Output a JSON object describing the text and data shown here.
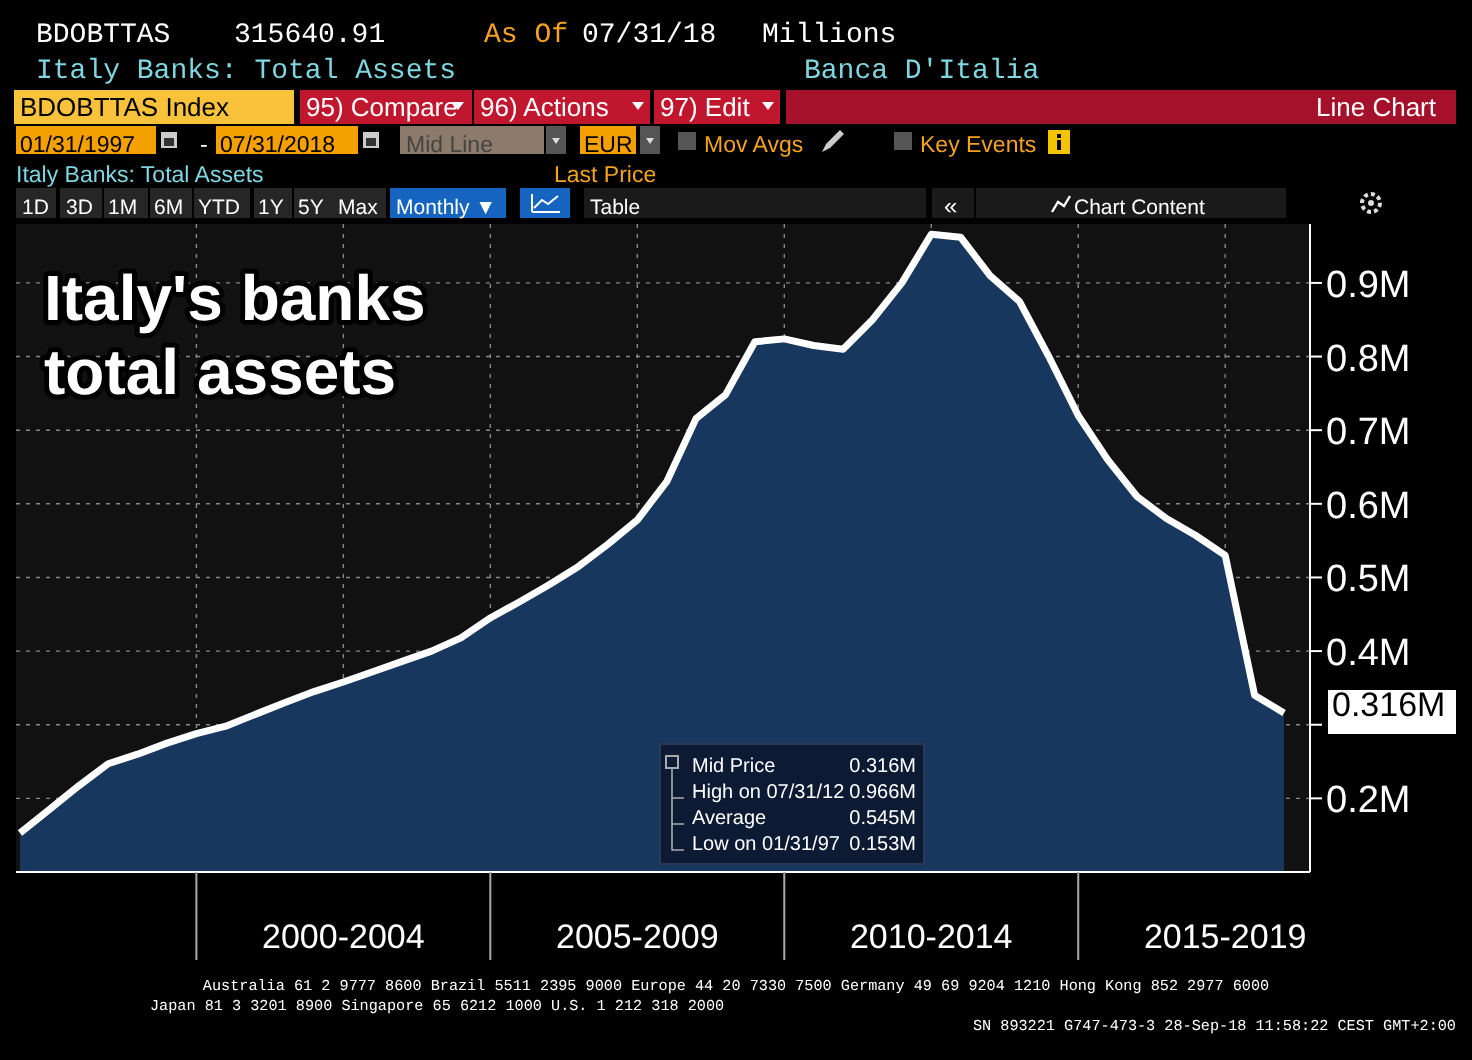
{
  "chart_data": {
    "type": "area",
    "title": "Italy's banks total assets",
    "categories": [
      null,
      null,
      null,
      null,
      null,
      null,
      null,
      null,
      null,
      null,
      null,
      "2000-2004",
      null,
      null,
      null,
      null,
      null,
      null,
      null,
      null,
      null,
      "2005-2009",
      null,
      null,
      null,
      null,
      null,
      null,
      null,
      null,
      null,
      "2010-2014",
      null,
      null,
      null,
      null,
      null,
      null,
      null,
      null,
      null,
      "2015-2019",
      null,
      null
    ],
    "series": [
      {
        "color": "#17375e",
        "values": [
          0.153,
          0.185,
          0.217,
          0.247,
          0.26,
          0.275,
          0.288,
          0.298,
          0.314,
          0.33,
          0.345,
          0.358,
          0.372,
          0.386,
          0.4,
          0.418,
          0.445,
          0.467,
          0.49,
          0.515,
          0.545,
          0.578,
          0.63,
          0.716,
          0.748,
          0.82,
          0.824,
          0.815,
          0.81,
          0.85,
          0.9,
          0.966,
          0.962,
          0.91,
          0.875,
          0.8,
          0.72,
          0.66,
          0.61,
          0.58,
          0.557,
          0.53,
          0.34,
          0.316
        ]
      }
    ],
    "ylim": [
      0.1,
      0.98
    ],
    "yticks": [
      {
        "value": 0.2,
        "label": "0.2M"
      },
      {
        "value": 0.3,
        "label": null
      },
      {
        "value": 0.4,
        "label": "0.4M"
      },
      {
        "value": 0.5,
        "label": "0.5M"
      },
      {
        "value": 0.6,
        "label": "0.6M"
      },
      {
        "value": 0.7,
        "label": "0.7M"
      },
      {
        "value": 0.8,
        "label": "0.8M"
      },
      {
        "value": 0.9,
        "label": "0.9M"
      }
    ],
    "grid": true,
    "annotations": [
      "0.316M",
      "BDOBTTAS",
      "315640.91",
      "As Of",
      "07/31/18",
      "Millions",
      "Italy Banks: Total Assets",
      "Banca D'Italia",
      "BDOBTTAS Index",
      "95) Compare",
      "96) Actions",
      "97) Edit",
      "Line Chart",
      "01/31/1997",
      "-",
      "07/31/2018",
      "Mid Line",
      "EUR",
      "Mov Avgs",
      "Key Events",
      "Italy Banks: Total Assets",
      "Last Price",
      "1D",
      "3D",
      "1M",
      "6M",
      "YTD",
      "1Y",
      "5Y",
      "Max",
      "Monthly ▼",
      "Table",
      "«",
      "Chart Content",
      "Mid Price",
      "0.316M",
      "High on 07/31/12",
      "0.966M",
      "Average",
      "0.545M",
      "Low on 01/31/97",
      "0.153M",
      "Australia 61 2 9777 8600 Brazil 5511 2395 9000 Europe 44 20 7330 7500 Germany 49 69 9204 1210 Hong Kong 852 2977 6000",
      "Japan 81 3 3201 8900      Singapore 65 6212 1000      U.S. 1 212 318 2000",
      "SN 893221 G747-473-3 28-Sep-18 11:58:22 CEST GMT+2:00"
    ]
  }
}
